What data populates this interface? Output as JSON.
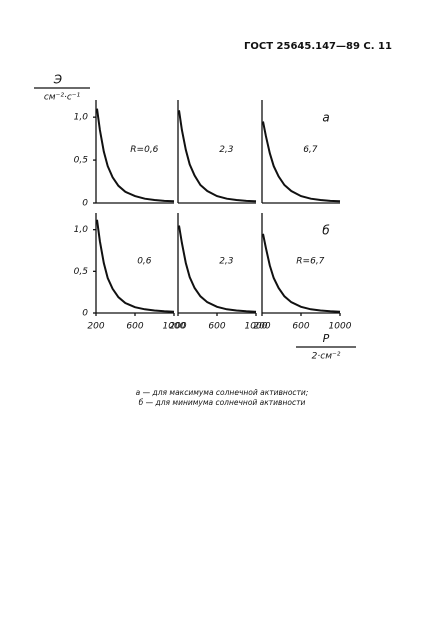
{
  "header": "ГОСТ 25645.147—89 С. 11",
  "caption": [
    "а — для максимума солнечной активности;",
    "б — для минимума солнечной активности"
  ],
  "chart_data": [
    {
      "type": "line",
      "ylabel": "Э",
      "ylabel_unit": "см⁻²·с⁻¹",
      "annotation": "R=0,6",
      "xlim": [
        200,
        1000
      ],
      "ylim": [
        0,
        1.2
      ],
      "yticks": [
        0,
        {
          "value": 0.5,
          "label": "0,5"
        },
        {
          "value": 1.0,
          "label": "1,0"
        }
      ],
      "series": [
        {
          "color": "#111",
          "x": [
            210,
            240,
            280,
            320,
            370,
            430,
            500,
            600,
            700,
            800,
            900,
            1000
          ],
          "values": [
            1.1,
            0.85,
            0.6,
            0.43,
            0.3,
            0.2,
            0.13,
            0.08,
            0.05,
            0.035,
            0.025,
            0.02
          ]
        }
      ]
    },
    {
      "type": "line",
      "annotation": "2,3",
      "xlim": [
        200,
        1000
      ],
      "ylim": [
        0,
        1.2
      ],
      "series": [
        {
          "color": "#111",
          "x": [
            210,
            240,
            280,
            320,
            370,
            430,
            500,
            600,
            700,
            800,
            900,
            1000
          ],
          "values": [
            1.08,
            0.85,
            0.62,
            0.45,
            0.32,
            0.21,
            0.14,
            0.08,
            0.05,
            0.035,
            0.025,
            0.02
          ]
        }
      ]
    },
    {
      "type": "line",
      "annotation": "6,7",
      "panel_letter": "а",
      "xlim": [
        200,
        1000
      ],
      "ylim": [
        0,
        1.2
      ],
      "series": [
        {
          "color": "#111",
          "x": [
            210,
            240,
            280,
            320,
            370,
            430,
            500,
            600,
            700,
            800,
            900,
            1000
          ],
          "values": [
            0.95,
            0.78,
            0.58,
            0.43,
            0.31,
            0.21,
            0.14,
            0.08,
            0.05,
            0.035,
            0.025,
            0.02
          ]
        }
      ]
    },
    {
      "type": "line",
      "annotation": "0,6",
      "xlim": [
        200,
        1000
      ],
      "ylim": [
        0,
        1.2
      ],
      "xticks": [
        200,
        600,
        1000
      ],
      "yticks": [
        0,
        {
          "value": 0.5,
          "label": "0,5"
        },
        {
          "value": 1.0,
          "label": "1,0"
        }
      ],
      "series": [
        {
          "color": "#111",
          "x": [
            210,
            240,
            280,
            320,
            370,
            430,
            500,
            600,
            700,
            800,
            900,
            1000
          ],
          "values": [
            1.12,
            0.86,
            0.6,
            0.42,
            0.29,
            0.19,
            0.12,
            0.07,
            0.045,
            0.03,
            0.02,
            0.015
          ]
        }
      ]
    },
    {
      "type": "line",
      "annotation": "2,3",
      "xlim": [
        200,
        1000
      ],
      "ylim": [
        0,
        1.2
      ],
      "xticks": [
        200,
        600,
        1000
      ],
      "series": [
        {
          "color": "#111",
          "x": [
            210,
            240,
            280,
            320,
            370,
            430,
            500,
            600,
            700,
            800,
            900,
            1000
          ],
          "values": [
            1.05,
            0.84,
            0.6,
            0.43,
            0.3,
            0.2,
            0.13,
            0.075,
            0.045,
            0.03,
            0.02,
            0.015
          ]
        }
      ]
    },
    {
      "type": "line",
      "annotation": "R=6,7",
      "panel_letter": "б",
      "xlabel": "Р",
      "xlabel_unit": "2·см⁻²",
      "xlim": [
        200,
        1000
      ],
      "ylim": [
        0,
        1.2
      ],
      "xticks": [
        200,
        600,
        1000
      ],
      "series": [
        {
          "color": "#111",
          "x": [
            210,
            240,
            280,
            320,
            370,
            430,
            500,
            600,
            700,
            800,
            900,
            1000
          ],
          "values": [
            0.95,
            0.78,
            0.57,
            0.42,
            0.3,
            0.2,
            0.13,
            0.075,
            0.045,
            0.03,
            0.02,
            0.015
          ]
        }
      ]
    }
  ]
}
